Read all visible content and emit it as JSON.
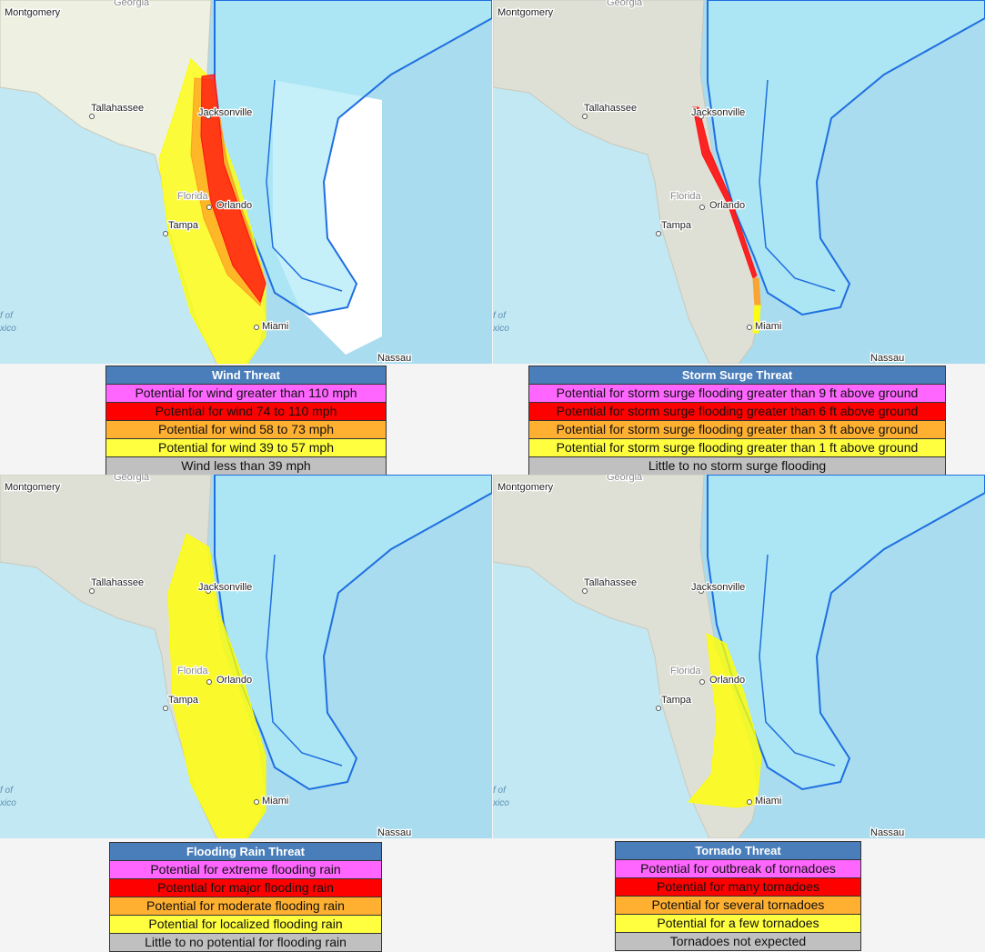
{
  "panels": [
    {
      "map_labels": [
        "Montgomery",
        "Georgia",
        "Tallahassee",
        "Jacksonville",
        "Florida",
        "Orlando",
        "Tampa",
        "Miami",
        "Nassau",
        "f of",
        "xico"
      ],
      "legend": {
        "title": "Wind Threat",
        "items": [
          "Potential for wind greater than 110 mph",
          "Potential for wind 74 to 110 mph",
          "Potential for wind 58 to 73 mph",
          "Potential for wind 39 to 57 mph",
          "Wind less than 39 mph"
        ]
      }
    },
    {
      "map_labels": [
        "Montgomery",
        "Georgia",
        "Tallahassee",
        "Jacksonville",
        "Florida",
        "Orlando",
        "Tampa",
        "Miami",
        "Nassau",
        "f of",
        "xico"
      ],
      "legend": {
        "title": "Storm Surge Threat",
        "items": [
          "Potential for storm surge flooding greater than 9 ft above ground",
          "Potential for storm surge flooding greater than 6 ft above ground",
          "Potential for storm surge flooding greater than 3 ft above ground",
          "Potential for storm surge flooding greater than 1 ft above ground",
          "Little to no storm surge flooding"
        ]
      }
    },
    {
      "map_labels": [
        "Montgomery",
        "Georgia",
        "Tallahassee",
        "Jacksonville",
        "Florida",
        "Orlando",
        "Tampa",
        "Miami",
        "Nassau",
        "f of",
        "xico"
      ],
      "legend": {
        "title": "Flooding Rain Threat",
        "items": [
          "Potential for extreme flooding rain",
          "Potential for major flooding rain",
          "Potential for moderate flooding rain",
          "Potential for localized flooding rain",
          "Little to no potential for flooding rain"
        ]
      }
    },
    {
      "map_labels": [
        "Montgomery",
        "Georgia",
        "Tallahassee",
        "Jacksonville",
        "Florida",
        "Orlando",
        "Tampa",
        "Miami",
        "Nassau",
        "f of",
        "xico"
      ],
      "legend": {
        "title": "Tornado Threat",
        "items": [
          "Potential for outbreak of tornadoes",
          "Potential for many  tornadoes",
          "Potential for several tornadoes",
          "Potential for a few tornadoes",
          "Tornadoes not expected"
        ]
      }
    }
  ]
}
